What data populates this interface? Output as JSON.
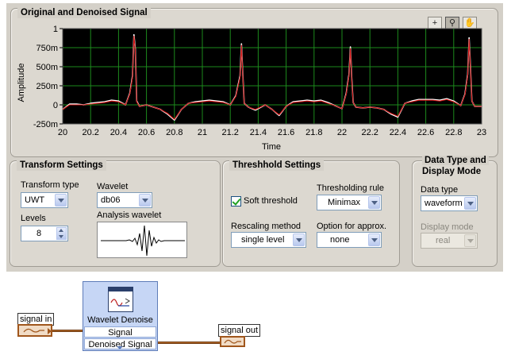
{
  "graph": {
    "title": "Original and Denoised Signal",
    "ylabel": "Amplitude",
    "xlabel": "Time",
    "tools": [
      {
        "name": "cursor-tool-icon",
        "glyph": "+"
      },
      {
        "name": "zoom-tool-icon",
        "glyph": "⚲"
      },
      {
        "name": "pan-tool-icon",
        "glyph": "✋"
      }
    ],
    "colors": {
      "plot_bg": "#000000",
      "grid": "#1d8a1d",
      "original": "#ffffff",
      "denoised": "#d01010"
    }
  },
  "transform": {
    "title": "Transform Settings",
    "type_label": "Transform type",
    "type_value": "UWT",
    "wavelet_label": "Wavelet",
    "wavelet_value": "db06",
    "levels_label": "Levels",
    "levels_value": "8",
    "analysis_label": "Analysis wavelet"
  },
  "threshold": {
    "title": "Threshhold Settings",
    "soft_label": "Soft threshold",
    "soft_checked": true,
    "rule_label": "Thresholding rule",
    "rule_value": "Minimax",
    "rescale_label": "Rescaling method",
    "rescale_value": "single level",
    "approx_label": "Option for approx.",
    "approx_value": "none"
  },
  "display": {
    "title_line1": "Data Type and",
    "title_line2": "Display Mode",
    "data_type_label": "Data type",
    "data_type_value": "waveform",
    "display_mode_label": "Display mode",
    "display_mode_value": "real"
  },
  "diagram": {
    "signal_in": "signal in",
    "signal_out": "signal out",
    "node_title": "Wavelet Denoise",
    "node_in": "Signal",
    "node_out": "Denoised Signal"
  },
  "chart_data": {
    "type": "line",
    "title": "Original and Denoised Signal",
    "xlabel": "Time",
    "ylabel": "Amplitude",
    "xlim": [
      20,
      23
    ],
    "ylim": [
      -0.25,
      1.0
    ],
    "xticks": [
      "20",
      "20.2",
      "20.4",
      "20.6",
      "20.8",
      "21",
      "21.2",
      "21.4",
      "21.6",
      "21.8",
      "22",
      "22.2",
      "22.4",
      "22.6",
      "22.8",
      "23"
    ],
    "yticks": [
      "1",
      "750m",
      "500m",
      "250m",
      "0",
      "-250m"
    ],
    "grid": true,
    "series": [
      {
        "color": "#ffffff",
        "x": [
          20.0,
          20.05,
          20.1,
          20.15,
          20.2,
          20.25,
          20.3,
          20.35,
          20.4,
          20.45,
          20.48,
          20.5,
          20.51,
          20.52,
          20.53,
          20.55,
          20.6,
          20.65,
          20.7,
          20.75,
          20.8,
          20.85,
          20.9,
          20.95,
          21.0,
          21.05,
          21.1,
          21.15,
          21.2,
          21.24,
          21.27,
          21.28,
          21.29,
          21.3,
          21.33,
          21.38,
          21.45,
          21.5,
          21.55,
          21.6,
          21.65,
          21.7,
          21.75,
          21.8,
          21.85,
          21.9,
          21.95,
          22.0,
          22.03,
          22.05,
          22.06,
          22.07,
          22.08,
          22.1,
          22.15,
          22.2,
          22.25,
          22.3,
          22.35,
          22.4,
          22.45,
          22.5,
          22.55,
          22.6,
          22.65,
          22.7,
          22.75,
          22.8,
          22.85,
          22.88,
          22.9,
          22.91,
          22.92,
          22.93,
          22.95,
          23.0
        ],
        "y": [
          -0.06,
          0.01,
          0.01,
          0.0,
          0.02,
          0.03,
          0.04,
          0.06,
          0.05,
          0.0,
          0.15,
          0.38,
          0.92,
          0.74,
          0.05,
          -0.02,
          0.0,
          -0.03,
          -0.06,
          -0.12,
          -0.2,
          -0.06,
          0.02,
          0.04,
          0.05,
          0.06,
          0.05,
          0.04,
          0.0,
          0.12,
          0.38,
          0.8,
          0.4,
          0.02,
          -0.03,
          -0.07,
          0.0,
          -0.06,
          -0.14,
          -0.02,
          0.04,
          0.05,
          0.06,
          0.05,
          0.06,
          0.03,
          -0.01,
          -0.05,
          0.15,
          0.4,
          0.76,
          0.35,
          0.03,
          -0.03,
          -0.04,
          -0.03,
          -0.04,
          -0.06,
          -0.12,
          -0.16,
          0.02,
          0.05,
          0.07,
          0.07,
          0.07,
          0.06,
          0.08,
          0.05,
          -0.01,
          0.14,
          0.4,
          0.88,
          0.5,
          0.05,
          -0.02,
          -0.02
        ]
      },
      {
        "color": "#d01010",
        "x": [
          20.0,
          20.05,
          20.1,
          20.15,
          20.2,
          20.25,
          20.3,
          20.35,
          20.4,
          20.45,
          20.48,
          20.5,
          20.51,
          20.52,
          20.53,
          20.55,
          20.6,
          20.65,
          20.7,
          20.75,
          20.8,
          20.85,
          20.9,
          20.95,
          21.0,
          21.05,
          21.1,
          21.15,
          21.2,
          21.24,
          21.27,
          21.28,
          21.29,
          21.3,
          21.33,
          21.38,
          21.45,
          21.5,
          21.55,
          21.6,
          21.65,
          21.7,
          21.75,
          21.8,
          21.85,
          21.9,
          21.95,
          22.0,
          22.03,
          22.05,
          22.06,
          22.07,
          22.08,
          22.1,
          22.15,
          22.2,
          22.25,
          22.3,
          22.35,
          22.4,
          22.45,
          22.5,
          22.55,
          22.6,
          22.65,
          22.7,
          22.75,
          22.8,
          22.85,
          22.88,
          22.9,
          22.91,
          22.92,
          22.93,
          22.95,
          23.0
        ],
        "y": [
          -0.06,
          0.0,
          0.0,
          0.0,
          0.01,
          0.02,
          0.03,
          0.05,
          0.04,
          0.0,
          0.14,
          0.36,
          0.9,
          0.72,
          0.04,
          -0.02,
          0.0,
          -0.03,
          -0.06,
          -0.11,
          -0.19,
          -0.06,
          0.02,
          0.03,
          0.04,
          0.05,
          0.04,
          0.03,
          0.0,
          0.11,
          0.36,
          0.78,
          0.38,
          0.02,
          -0.03,
          -0.06,
          0.0,
          -0.06,
          -0.13,
          -0.02,
          0.03,
          0.04,
          0.05,
          0.04,
          0.05,
          0.02,
          -0.01,
          -0.05,
          0.14,
          0.38,
          0.74,
          0.33,
          0.03,
          -0.03,
          -0.04,
          -0.03,
          -0.04,
          -0.06,
          -0.11,
          -0.15,
          0.02,
          0.04,
          0.06,
          0.06,
          0.06,
          0.05,
          0.07,
          0.04,
          -0.01,
          0.13,
          0.38,
          0.86,
          0.48,
          0.05,
          -0.02,
          -0.02
        ]
      }
    ]
  }
}
